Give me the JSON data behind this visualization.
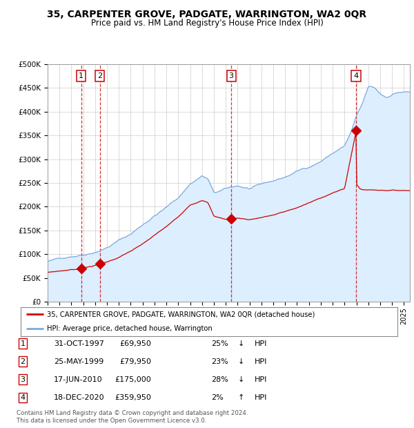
{
  "title": "35, CARPENTER GROVE, PADGATE, WARRINGTON, WA2 0QR",
  "subtitle": "Price paid vs. HM Land Registry's House Price Index (HPI)",
  "legend_line1": "35, CARPENTER GROVE, PADGATE, WARRINGTON, WA2 0QR (detached house)",
  "legend_line2": "HPI: Average price, detached house, Warrington",
  "red_line_color": "#cc0000",
  "blue_line_color": "#7aaadd",
  "blue_fill_color": "#ddeeff",
  "grid_color": "#cccccc",
  "dashed_line_color": "#cc0000",
  "background_color": "#ffffff",
  "ylim": [
    0,
    500000
  ],
  "yticks": [
    0,
    50000,
    100000,
    150000,
    200000,
    250000,
    300000,
    350000,
    400000,
    450000,
    500000
  ],
  "xlim_start": 1995.0,
  "xlim_end": 2025.5,
  "sale_dates_decimal": [
    1997.833,
    1999.4,
    2010.46,
    2020.96
  ],
  "sale_prices": [
    69950,
    79950,
    175000,
    359950
  ],
  "sale_labels": [
    "1",
    "2",
    "3",
    "4"
  ],
  "footer_line1": "Contains HM Land Registry data © Crown copyright and database right 2024.",
  "footer_line2": "This data is licensed under the Open Government Licence v3.0.",
  "table_rows": [
    [
      "1",
      "31-OCT-1997",
      "£69,950",
      "25%",
      "↓",
      "HPI"
    ],
    [
      "2",
      "25-MAY-1999",
      "£79,950",
      "23%",
      "↓",
      "HPI"
    ],
    [
      "3",
      "17-JUN-2010",
      "£175,000",
      "28%",
      "↓",
      "HPI"
    ],
    [
      "4",
      "18-DEC-2020",
      "£359,950",
      "2%",
      "↑",
      "HPI"
    ]
  ]
}
